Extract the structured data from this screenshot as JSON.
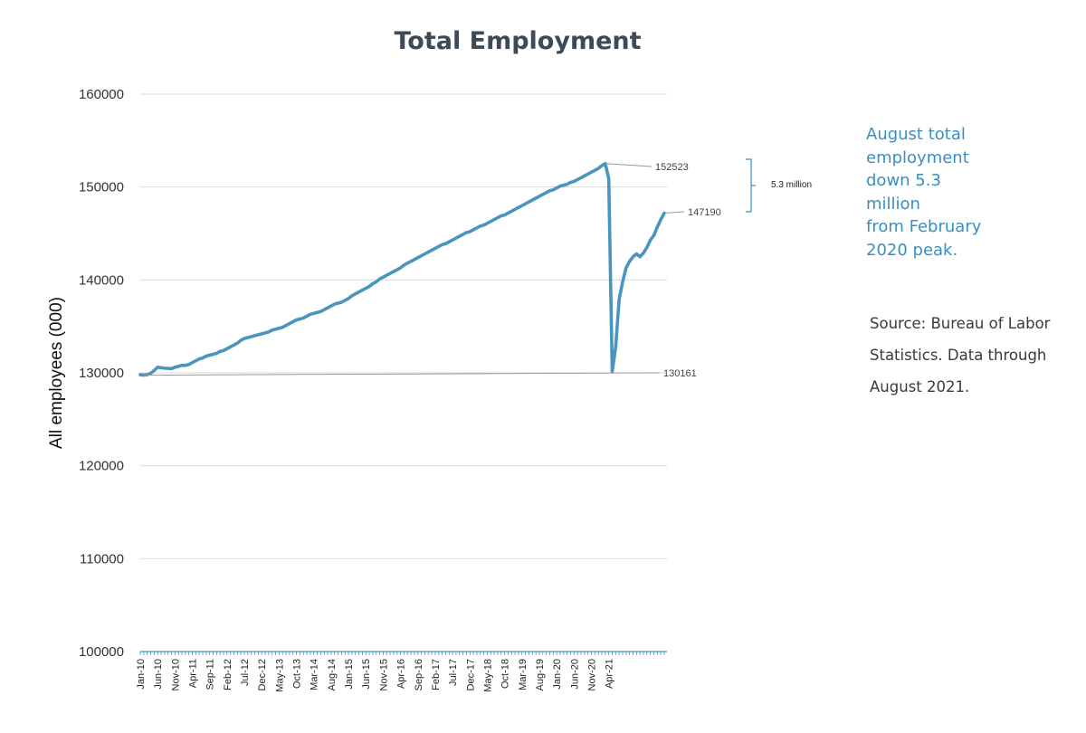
{
  "colors": {
    "line": "#4a95bd",
    "callout": "#3b8fc0",
    "title": "#3d4a57",
    "grid": "#d9d9d9"
  },
  "callout_text": "August total\nemployment\ndown 5.3\nmillion\nfrom February\n2020 peak.",
  "source_text": "Source: Bureau of Labor\nStatistics. Data through\nAugust 2021.",
  "chart_data": {
    "type": "line",
    "title": "Total Employment",
    "xlabel": "",
    "ylabel": "All employees (000)",
    "ylim": [
      100000,
      160000
    ],
    "yticks": [
      "100000",
      "110000",
      "120000",
      "130000",
      "140000",
      "150000",
      "160000"
    ],
    "grid": "horizontal",
    "xtick_labels": [
      "Jan-10",
      "Jun-10",
      "Nov-10",
      "Apr-11",
      "Sep-11",
      "Feb-12",
      "Jul-12",
      "Dec-12",
      "May-13",
      "Oct-13",
      "Mar-14",
      "Aug-14",
      "Jan-15",
      "Jun-15",
      "Nov-15",
      "Apr-16",
      "Sep-16",
      "Feb-17",
      "Jul-17",
      "Dec-17",
      "May-18",
      "Oct-18",
      "Mar-19",
      "Aug-19",
      "Jan-20",
      "Jun-20",
      "Nov-20",
      "Apr-21"
    ],
    "x_start": "Jan-10",
    "x_end": "Aug-21",
    "series": [
      {
        "values": [
          129800,
          129750,
          129800,
          129950,
          130250,
          130600,
          130550,
          130500,
          130480,
          130450,
          130600,
          130700,
          130800,
          130800,
          130900,
          131100,
          131300,
          131500,
          131600,
          131800,
          131900,
          132000,
          132100,
          132300,
          132400,
          132600,
          132800,
          133000,
          133200,
          133500,
          133700,
          133800,
          133900,
          134000,
          134100,
          134200,
          134300,
          134400,
          134600,
          134700,
          134800,
          134900,
          135100,
          135300,
          135500,
          135700,
          135800,
          135900,
          136100,
          136300,
          136400,
          136500,
          136600,
          136800,
          137000,
          137200,
          137400,
          137500,
          137600,
          137800,
          138000,
          138300,
          138500,
          138700,
          138900,
          139100,
          139300,
          139600,
          139800,
          140100,
          140300,
          140500,
          140700,
          140900,
          141100,
          141300,
          141600,
          141800,
          142000,
          142200,
          142400,
          142600,
          142800,
          143000,
          143200,
          143400,
          143600,
          143800,
          143900,
          144100,
          144300,
          144500,
          144700,
          144900,
          145100,
          145200,
          145400,
          145600,
          145800,
          145900,
          146100,
          146300,
          146500,
          146700,
          146900,
          147000,
          147200,
          147400,
          147600,
          147800,
          148000,
          148200,
          148400,
          148600,
          148800,
          149000,
          149200,
          149400,
          149600,
          149700,
          149900,
          150100,
          150200,
          150300,
          150500,
          150600,
          150800,
          151000,
          151200,
          151400,
          151600,
          151800,
          152000,
          152300,
          152523,
          150900,
          130161,
          132800,
          137900,
          139800,
          141300,
          142000,
          142500,
          142800,
          142500,
          142900,
          143500,
          144300,
          144800,
          145700,
          146500,
          147190
        ],
        "labels": [
          {
            "value": "152523"
          },
          {
            "value": "147190"
          },
          {
            "value": "130161"
          }
        ]
      }
    ],
    "annotations": {
      "bracket_label": "5.3 million"
    }
  }
}
